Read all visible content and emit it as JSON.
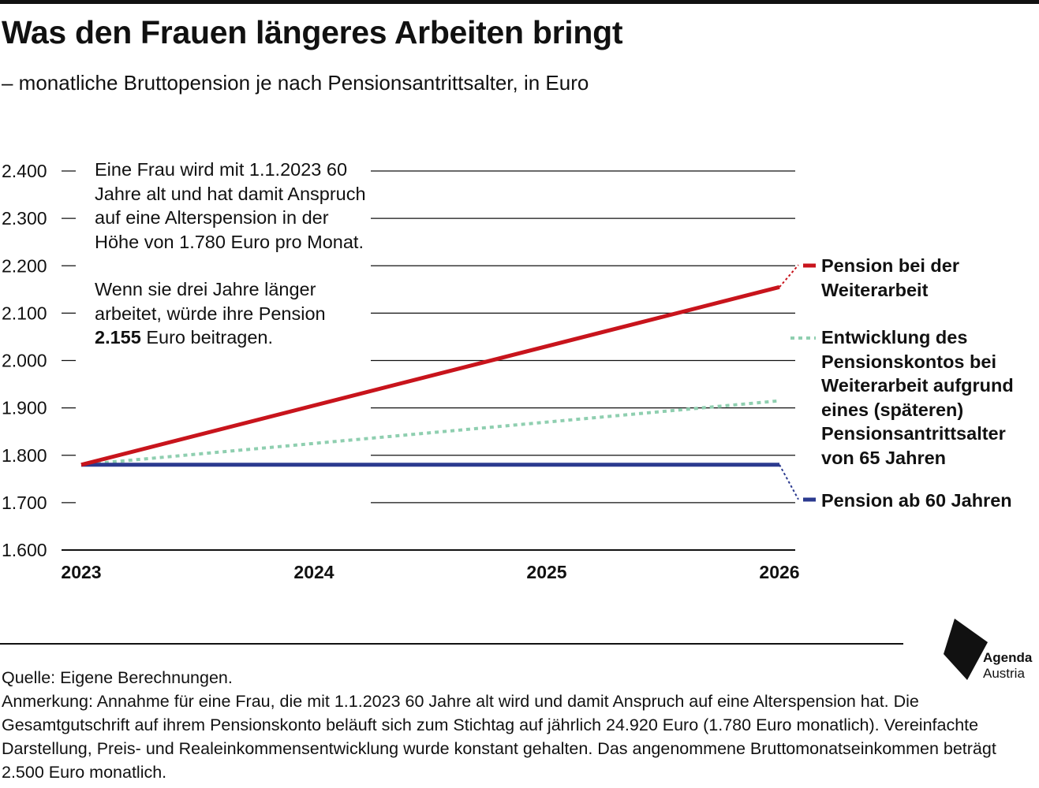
{
  "title": "Was den Frauen längeres Arbeiten bringt",
  "subtitle": "– monatliche Bruttopension je nach Pensionsantrittsalter, in Euro",
  "annotation": {
    "p1": "Eine Frau wird mit 1.1.2023 60 Jahre alt und hat damit Anspruch auf eine Alters­pension in der Höhe von 1.780 Euro pro Monat.",
    "p2_before": "Wenn sie drei Jahre länger arbeitet, würde ihre Pension ",
    "p2_bold": "2.155",
    "p2_after": " Euro beitragen."
  },
  "legend": {
    "red": "Pension bei der Weiterarbeit",
    "green": "Entwicklung des Pensionskontos bei Weiterarbeit aufgrund eines (späteren) Pensionsantrittsalter von 65 Jahren",
    "blue": "Pension ab 60 Jahren"
  },
  "colors": {
    "red": "#c8141c",
    "green": "#8fcfb0",
    "blue": "#2b3a8f",
    "text": "#111111"
  },
  "chart_data": {
    "type": "line",
    "x": [
      2023,
      2026
    ],
    "xticks": [
      "2023",
      "2024",
      "2025",
      "2026"
    ],
    "ylim": [
      1600,
      2400
    ],
    "yticks": [
      "1.600",
      "1.700",
      "1.800",
      "1.900",
      "2.000",
      "2.100",
      "2.200",
      "2.300",
      "2.400"
    ],
    "grid": true,
    "legend_position": "right",
    "series": [
      {
        "name": "Pension bei der Weiterarbeit",
        "x": [
          2023,
          2026
        ],
        "values": [
          1780,
          2155
        ],
        "style": "solid",
        "color": "#c8141c"
      },
      {
        "name": "Entwicklung des Pensionskontos bei Weiterarbeit aufgrund eines (späteren) Pensionsantrittsalter von 65 Jahren",
        "x": [
          2023,
          2026
        ],
        "values": [
          1780,
          1915
        ],
        "style": "dotted",
        "color": "#8fcfb0"
      },
      {
        "name": "Pension ab 60 Jahren",
        "x": [
          2023,
          2026
        ],
        "values": [
          1780,
          1780
        ],
        "style": "solid",
        "color": "#2b3a8f"
      }
    ]
  },
  "footer": {
    "source": "Quelle: Eigene Berechnungen.",
    "note": "Anmerkung: Annahme für eine Frau, die mit 1.1.2023 60 Jahre alt wird und damit Anspruch auf eine Alterspension hat. Die Gesamtgutschrift auf ihrem Pensionskonto beläuft sich zum Stichtag auf jährlich 24.920 Euro (1.780 Euro monatlich). Vereinfachte Darstellung, Preis- und Realeinkommensentwicklung wurde konstant gehalten. Das angenommene Bruttomonatseinkommen beträgt 2.500 Euro monatlich."
  },
  "logo": {
    "name": "Agenda",
    "country": "Austria"
  }
}
